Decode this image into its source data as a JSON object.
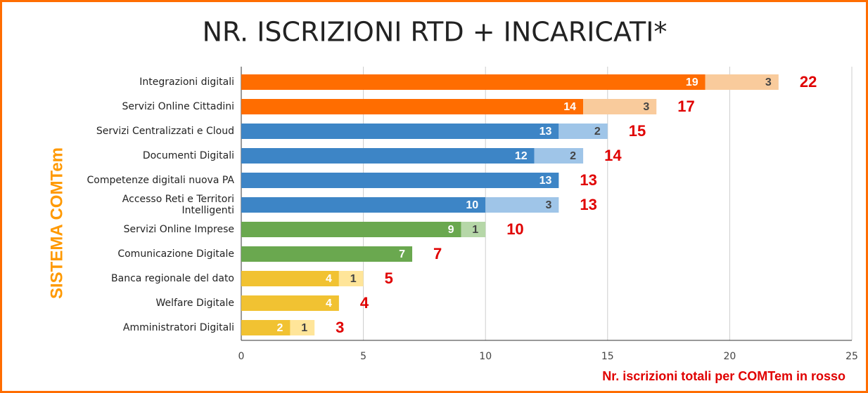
{
  "chart_data": {
    "type": "stacked-bar-horizontal",
    "title": "NR. ISCRIZIONI RTD + INCARICATI*",
    "y_label": "SISTEMA COMTem",
    "x_label": "Nr. iscrizioni totali per COMTem in rosso",
    "categories": [
      "Integrazioni digitali",
      "Servizi Online Cittadini",
      "Servizi Centralizzati e Cloud",
      "Documenti Digitali",
      "Competenze digitali nuova PA",
      "Accesso Reti e Territori Intelligenti",
      "Servizi Online Imprese",
      "Comunicazione Digitale",
      "Banca regionale del dato",
      "Welfare Digitale",
      "Amministratori Digitali"
    ],
    "series": [
      {
        "values": [
          19,
          14,
          13,
          12,
          13,
          10,
          9,
          7,
          4,
          4,
          2
        ],
        "colors": [
          "#ff6d01",
          "#ff6d01",
          "#3d85c6",
          "#3d85c6",
          "#3d85c6",
          "#3d85c6",
          "#6aa84f",
          "#6aa84f",
          "#f1c232",
          "#f1c232",
          "#f1c232"
        ],
        "label_color": "#ffffff"
      },
      {
        "values": [
          3,
          3,
          2,
          2,
          null,
          3,
          1,
          null,
          1,
          null,
          1
        ],
        "colors": [
          "#f9cb9c",
          "#f9cb9c",
          "#9fc5e8",
          "#9fc5e8",
          "#9fc5e8",
          "#9fc5e8",
          "#b6d7a8",
          "#b6d7a8",
          "#ffe599",
          "#ffe599",
          "#ffe599"
        ],
        "label_color": "#444444"
      }
    ],
    "totals": [
      22,
      17,
      15,
      14,
      13,
      13,
      10,
      7,
      5,
      4,
      3
    ],
    "xlim": [
      0,
      25
    ],
    "xticks": [
      0,
      5,
      10,
      15,
      20,
      25
    ],
    "grid": true,
    "frame_color": "#ff6d01",
    "y_label_color": "#ff9900"
  }
}
